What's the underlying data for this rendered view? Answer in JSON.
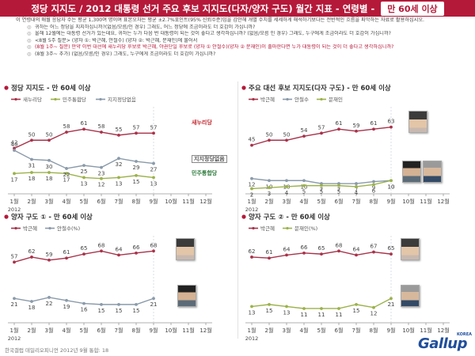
{
  "header": {
    "title": "정당 지지도 / 2012 대통령 선거 주요 후보 지지도(다자/양자 구도) 월간 지표 - 연령별 -",
    "badge": "만 60세 이상"
  },
  "notes": {
    "intro": "이 연령대의 매월 응답자 수는 평균 1,300여 명이며 표본오차는 평균 ±2.7%포인트(95% 신뢰수준)임을 감안해 개별 수치를 세세하게 해석하기보다는 전반적인 흐름을 파악하는 자료로 활용하십시오.",
    "items": [
      "귀하는 어느 정당을 지지하십니까?(없음/모름/인 경우) 그래도, 어느 정당에 조금이라도 더 호감이 가십니까?",
      "올해 12월에는 대통령 선거가 있는데요, 귀하는 누가 다음 번 대통령이 되는 것이 좋다고 생각하십니까? (없음/모름 인 경우) 그래도, 누구에게 조금이라도 더 호감이 가십니까?",
      "<8월 5주 질문> (양자 ①: 박근혜, 안철수) (양자 ②: 박근혜, 문재인)에 물어서",
      "(8월 1주~ 질문) 만약 이번 대선에 새누리당 후보로 박근혜, 야권단일 후보로 (양자 ① 안철수)(양자 ② 문재인)이 출마한다면 누가 대통령이 되는 것이 더 좋다고 생각하십니까?",
      "(8월 3주~ 추가) (없음/모름/인 경우) 그래도, 누구에게 조금이라도 더 호감이 가십니까?"
    ]
  },
  "x_axis": {
    "ticks": [
      "1월",
      "2월",
      "3월",
      "4월",
      "5월",
      "6월",
      "7월",
      "8월",
      "9월",
      "10월",
      "11월",
      "12월"
    ],
    "year_label": "2012"
  },
  "chart_data": [
    {
      "type": "line",
      "title": "정당 지지도 - 만 60세 이상",
      "categories": [
        "1월",
        "2월",
        "3월",
        "4월",
        "5월",
        "6월",
        "7월",
        "8월",
        "9월"
      ],
      "ylim": [
        0,
        80
      ],
      "series": [
        {
          "name": "새누리당",
          "color": "#a8324a",
          "values": [
            42,
            50,
            50,
            58,
            61,
            58,
            55,
            57,
            57
          ]
        },
        {
          "name": "민주통합당",
          "color": "#9bb24a",
          "values": [
            17,
            18,
            18,
            17,
            13,
            12,
            13,
            15,
            13
          ]
        },
        {
          "name": "지지정당없음",
          "color": "#8a9aaa",
          "values": [
            40,
            31,
            30,
            22,
            25,
            23,
            32,
            29,
            27
          ]
        }
      ],
      "party_logos": [
        "새누리당",
        "지지정당없음",
        "민주통합당"
      ]
    },
    {
      "type": "line",
      "title": "주요 대선 후보 지지도(다자 구도) - 만 60세 이상",
      "categories": [
        "1월",
        "2월",
        "3월",
        "4월",
        "5월",
        "6월",
        "7월",
        "8월",
        "9월"
      ],
      "ylim": [
        0,
        80
      ],
      "series": [
        {
          "name": "박근혜",
          "color": "#a8324a",
          "values": [
            45,
            50,
            50,
            54,
            57,
            61,
            59,
            61,
            63
          ]
        },
        {
          "name": "안철수",
          "color": "#8a9aaa",
          "values": [
            12,
            10,
            10,
            10,
            7,
            7,
            7,
            9,
            10
          ]
        },
        {
          "name": "문재인",
          "color": "#9bb24a",
          "values": [
            2,
            3,
            4,
            5,
            5,
            5,
            4,
            6,
            10
          ]
        }
      ]
    },
    {
      "type": "line",
      "title": "양자 구도 ① - 만 60세 이상",
      "categories": [
        "1월",
        "2월",
        "3월",
        "4월",
        "5월",
        "6월",
        "7월",
        "8월",
        "9월"
      ],
      "ylim": [
        0,
        80
      ],
      "series": [
        {
          "name": "박근혜",
          "color": "#a8324a",
          "values": [
            57,
            62,
            59,
            61,
            65,
            68,
            64,
            66,
            68
          ]
        },
        {
          "name": "안철수(%)",
          "color": "#8a9aaa",
          "values": [
            21,
            18,
            22,
            19,
            16,
            15,
            15,
            15,
            21
          ]
        }
      ]
    },
    {
      "type": "line",
      "title": "양자 구도 ② - 만 60세 이상",
      "categories": [
        "1월",
        "2월",
        "3월",
        "4월",
        "5월",
        "6월",
        "7월",
        "8월",
        "9월"
      ],
      "ylim": [
        0,
        80
      ],
      "series": [
        {
          "name": "박근혜",
          "color": "#a8324a",
          "values": [
            62,
            61,
            64,
            66,
            65,
            68,
            64,
            67,
            65
          ]
        },
        {
          "name": "문재인(%)",
          "color": "#9bb24a",
          "values": [
            13,
            15,
            13,
            11,
            11,
            11,
            15,
            12,
            21
          ]
        }
      ]
    }
  ],
  "footer": {
    "source": "한국갤럽 데일리오피니언 2012년 9월 통합: 18",
    "brand": "Gallup",
    "brand_sub": "KOREA"
  }
}
